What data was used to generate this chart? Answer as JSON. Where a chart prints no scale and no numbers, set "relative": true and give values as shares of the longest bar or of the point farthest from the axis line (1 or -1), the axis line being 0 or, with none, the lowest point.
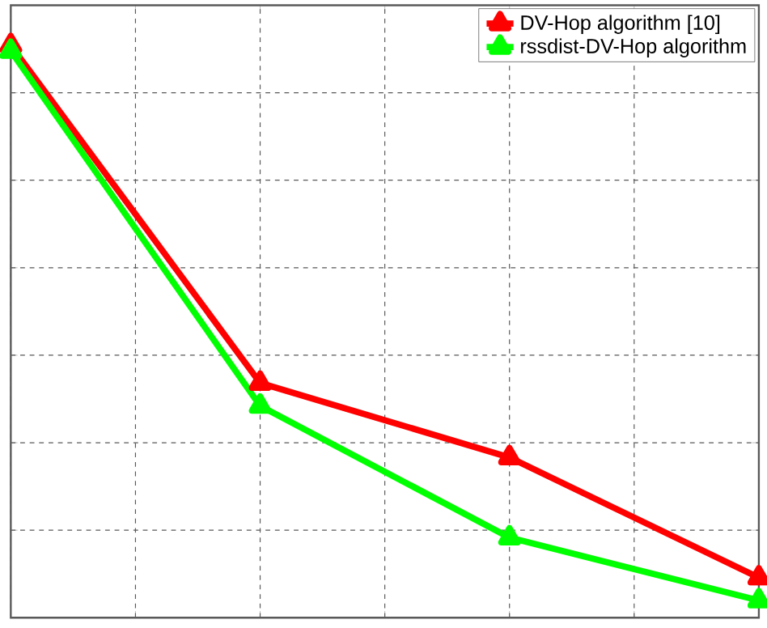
{
  "chart_data": {
    "type": "line",
    "relative": true,
    "categories": [
      null,
      null,
      null,
      null
    ],
    "series": [
      {
        "name": "DV-Hop algorithm [10]",
        "color": "#ff0000",
        "values": [
          1,
          0.41,
          0.28,
          0.07
        ]
      },
      {
        "name": "rssdist-DV-Hop algorithm",
        "color": "#00ff00",
        "values": [
          0.99,
          0.37,
          0.14,
          0.03
        ]
      }
    ],
    "grid": true,
    "legend": "top right",
    "marker": "triangle",
    "line_style": "solid"
  }
}
